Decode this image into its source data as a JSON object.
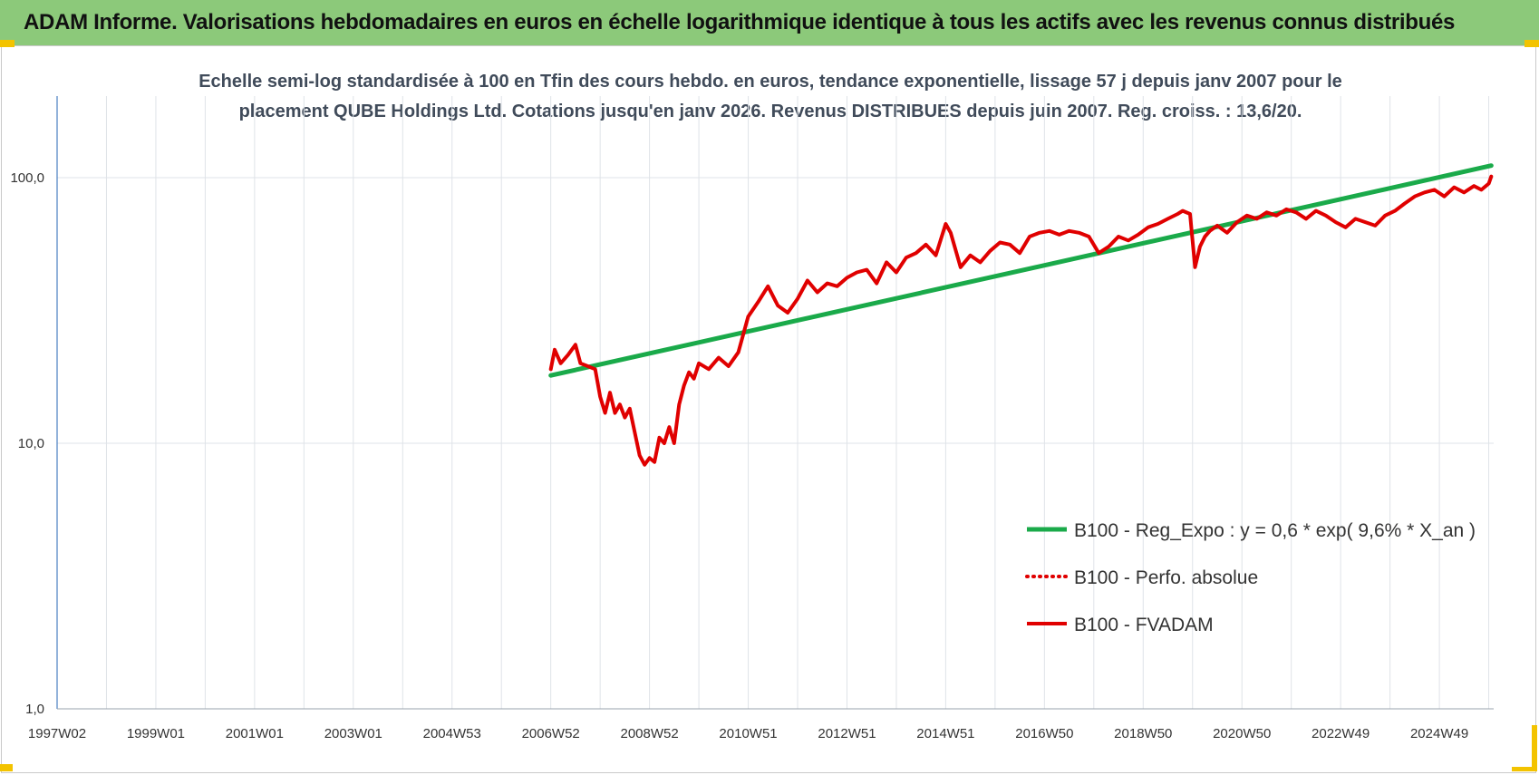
{
  "header": {
    "title": "ADAM Informe. Valorisations hebdomadaires en euros en échelle logarithmique identique à tous les actifs avec les revenus connus distribués"
  },
  "chart_data": {
    "type": "line",
    "title": "Echelle semi-log standardisée à 100 en Tfin des cours hebdo. en euros, tendance exponentielle, lissage 57 j depuis janv 2007 pour le placement QUBE Holdings Ltd. Cotations jusqu'en janv 2026. Revenus DISTRIBUES depuis juin 2007. Reg. croiss. : 13,6/20.",
    "subtitle_line1": "Echelle semi-log standardisée à 100 en Tfin des cours hebdo. en euros, tendance exponentielle, lissage 57 j depuis janv 2007 pour le",
    "subtitle_line2": "placement QUBE Holdings Ltd. Cotations jusqu'en janv 2026. Revenus DISTRIBUES depuis juin 2007. Reg. croiss. : 13,6/20.",
    "y_scale": "log",
    "ylim": [
      1,
      200
    ],
    "xlim": [
      1997.0,
      2026.1
    ],
    "y_ticks": [
      {
        "value": 1,
        "label": "1,0"
      },
      {
        "value": 10,
        "label": "10,0"
      },
      {
        "value": 100,
        "label": "100,0"
      }
    ],
    "x_ticks": [
      {
        "value": 1997.0,
        "label": "1997W02"
      },
      {
        "value": 1999.0,
        "label": "1999W01"
      },
      {
        "value": 2001.0,
        "label": "2001W01"
      },
      {
        "value": 2003.0,
        "label": "2003W01"
      },
      {
        "value": 2005.0,
        "label": "2004W53"
      },
      {
        "value": 2007.0,
        "label": "2006W52"
      },
      {
        "value": 2009.0,
        "label": "2008W52"
      },
      {
        "value": 2011.0,
        "label": "2010W51"
      },
      {
        "value": 2013.0,
        "label": "2012W51"
      },
      {
        "value": 2015.0,
        "label": "2014W51"
      },
      {
        "value": 2017.0,
        "label": "2016W50"
      },
      {
        "value": 2019.0,
        "label": "2018W50"
      },
      {
        "value": 2021.0,
        "label": "2020W50"
      },
      {
        "value": 2023.0,
        "label": "2022W49"
      },
      {
        "value": 2025.0,
        "label": "2024W49"
      }
    ],
    "grid": {
      "vertical": true,
      "horizontal": true
    },
    "legend": {
      "position": "bottom-right"
    },
    "series": [
      {
        "name": "B100 - Reg_Expo : y = 0,6 * exp( 9,6% *  X_an )",
        "color": "#1aaa4a",
        "style": "solid",
        "x": [
          2007.0,
          2026.05
        ],
        "y": [
          18.0,
          111.0
        ]
      },
      {
        "name": "B100 - Perfo. absolue",
        "color": "#e00000",
        "style": "dotted",
        "x": [],
        "y": []
      },
      {
        "name": "B100 - FVADAM",
        "color": "#e00000",
        "style": "solid",
        "x": [
          2007.0,
          2007.08,
          2007.2,
          2007.35,
          2007.5,
          2007.6,
          2007.75,
          2007.9,
          2008.0,
          2008.1,
          2008.2,
          2008.3,
          2008.4,
          2008.5,
          2008.6,
          2008.7,
          2008.8,
          2008.9,
          2009.0,
          2009.1,
          2009.2,
          2009.3,
          2009.4,
          2009.5,
          2009.6,
          2009.7,
          2009.8,
          2009.9,
          2010.0,
          2010.2,
          2010.4,
          2010.6,
          2010.8,
          2011.0,
          2011.2,
          2011.4,
          2011.6,
          2011.8,
          2012.0,
          2012.2,
          2012.4,
          2012.6,
          2012.8,
          2013.0,
          2013.2,
          2013.4,
          2013.6,
          2013.8,
          2014.0,
          2014.2,
          2014.4,
          2014.6,
          2014.8,
          2015.0,
          2015.1,
          2015.3,
          2015.5,
          2015.7,
          2015.9,
          2016.1,
          2016.3,
          2016.5,
          2016.7,
          2016.9,
          2017.1,
          2017.3,
          2017.5,
          2017.7,
          2017.9,
          2018.1,
          2018.3,
          2018.5,
          2018.7,
          2018.9,
          2019.1,
          2019.3,
          2019.5,
          2019.7,
          2019.8,
          2019.95,
          2020.05,
          2020.15,
          2020.25,
          2020.35,
          2020.5,
          2020.7,
          2020.9,
          2021.1,
          2021.3,
          2021.5,
          2021.7,
          2021.9,
          2022.1,
          2022.3,
          2022.5,
          2022.7,
          2022.9,
          2023.1,
          2023.3,
          2023.5,
          2023.7,
          2023.9,
          2024.1,
          2024.3,
          2024.5,
          2024.7,
          2024.9,
          2025.1,
          2025.3,
          2025.5,
          2025.7,
          2025.85,
          2026.0,
          2026.05
        ],
        "y": [
          19.0,
          22.5,
          20.0,
          21.5,
          23.5,
          20.0,
          19.5,
          19.0,
          15.0,
          13.0,
          15.5,
          13.0,
          14.0,
          12.5,
          13.5,
          11.0,
          9.0,
          8.3,
          8.8,
          8.5,
          10.5,
          10.0,
          11.5,
          10.0,
          14.0,
          16.5,
          18.5,
          17.5,
          20.0,
          19.0,
          21.0,
          19.5,
          22.0,
          30.0,
          34.0,
          39.0,
          33.0,
          31.0,
          35.0,
          41.0,
          37.0,
          40.0,
          39.0,
          42.0,
          44.0,
          45.0,
          40.0,
          48.0,
          44.0,
          50.0,
          52.0,
          56.0,
          51.0,
          67.0,
          62.0,
          46.0,
          51.0,
          48.0,
          53.0,
          57.0,
          56.0,
          52.0,
          60.0,
          62.0,
          63.0,
          61.0,
          63.0,
          62.0,
          60.0,
          52.0,
          55.0,
          60.0,
          58.0,
          61.0,
          65.0,
          67.0,
          70.0,
          73.0,
          75.0,
          73.0,
          46.0,
          55.0,
          60.0,
          63.0,
          66.0,
          62.0,
          68.0,
          72.0,
          70.0,
          74.0,
          72.0,
          76.0,
          74.0,
          70.0,
          75.0,
          72.0,
          68.0,
          65.0,
          70.0,
          68.0,
          66.0,
          72.0,
          75.0,
          80.0,
          85.0,
          88.0,
          90.0,
          85.0,
          92.0,
          88.0,
          93.0,
          90.0,
          95.0,
          101.0
        ]
      }
    ]
  }
}
